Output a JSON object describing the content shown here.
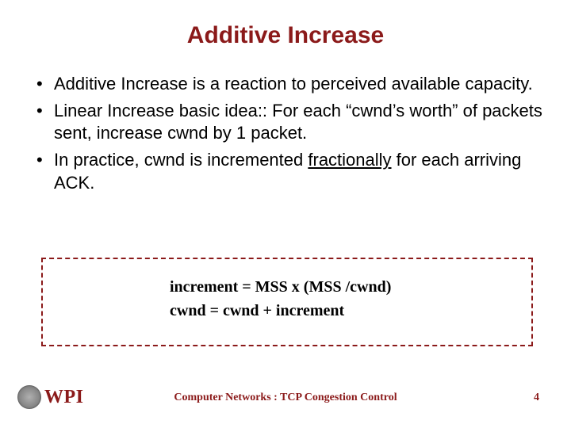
{
  "title": "Additive Increase",
  "bullets": [
    {
      "pre": "Additive Increase is a reaction to perceived available capacity."
    },
    {
      "pre": "Linear Increase basic idea:: For each “cwnd’s worth” of packets sent, increase cwnd by 1 packet."
    },
    {
      "pre": "In practice, cwnd is incremented ",
      "u": "fractionally",
      "post": " for each arriving ACK."
    }
  ],
  "formula": {
    "line1": "increment = MSS x (MSS /cwnd)",
    "line2": "cwnd = cwnd + increment",
    "border_color": "#8b1a1a"
  },
  "footer": {
    "org": "WPI",
    "title": "Computer Networks : TCP Congestion Control",
    "page": "4"
  },
  "colors": {
    "accent": "#8b1a1a",
    "text": "#000000",
    "background": "#ffffff"
  },
  "typography": {
    "title_fontsize": 30,
    "body_fontsize": 22,
    "formula_fontsize": 20,
    "footer_fontsize": 14
  }
}
